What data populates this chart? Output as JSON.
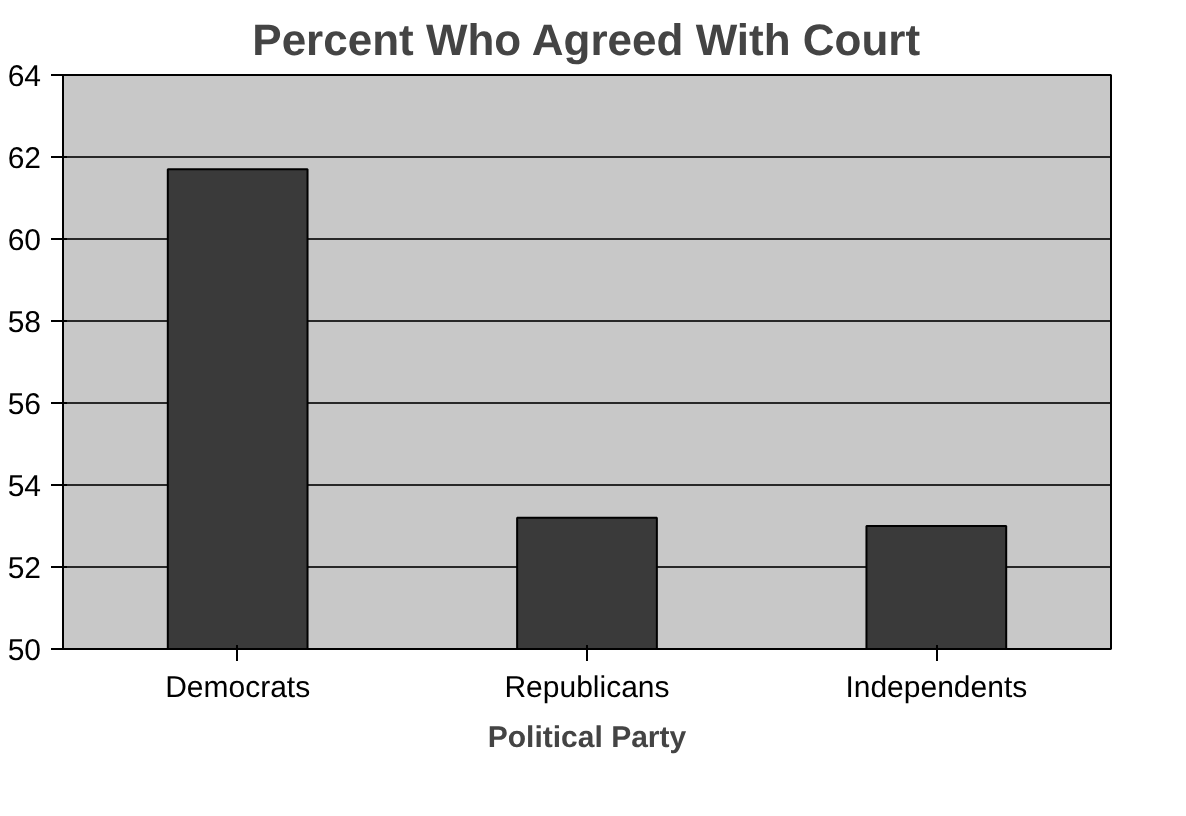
{
  "chart_data": {
    "type": "bar",
    "title": "Percent Who Agreed With Court",
    "xlabel": "Political Party",
    "categories": [
      "Democrats",
      "Republicans",
      "Independents"
    ],
    "values": [
      61.7,
      53.2,
      53.0
    ],
    "color": "#3a3a3a",
    "ylim": [
      50,
      64
    ],
    "yticks": [
      50,
      52,
      54,
      56,
      58,
      60,
      62,
      64
    ],
    "grid": "y"
  }
}
